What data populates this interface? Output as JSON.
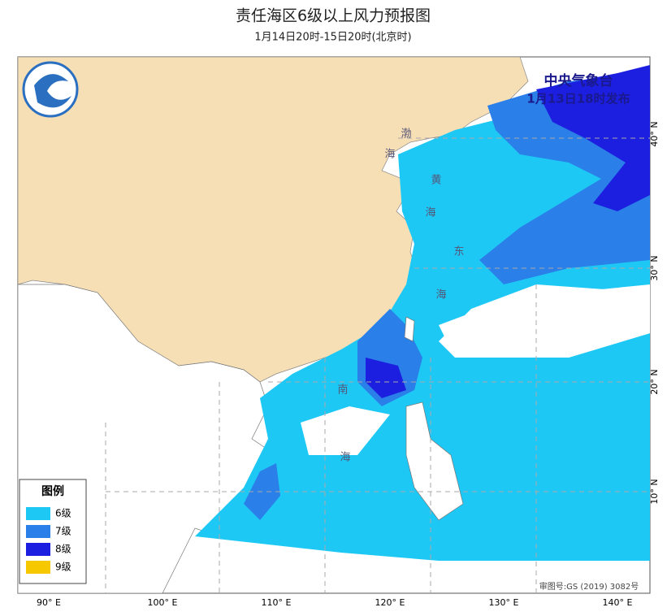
{
  "header": {
    "title": "责任海区6级以上风力预报图",
    "subtitle": "1月14日20时-15日20时(北京时)"
  },
  "issuer": {
    "name": "中央气象台",
    "time": "1月13日18时发布"
  },
  "legend": {
    "title": "图例",
    "items": [
      {
        "label": "6级",
        "color": "#1ec8f5"
      },
      {
        "label": "7级",
        "color": "#2a7fe8"
      },
      {
        "label": "8级",
        "color": "#1c1ee0"
      },
      {
        "label": "9级",
        "color": "#f5c800"
      }
    ]
  },
  "longitude_labels": [
    "90° E",
    "100° E",
    "110° E",
    "120° E",
    "130° E",
    "140° E"
  ],
  "latitude_labels": [
    "10° N",
    "20° N",
    "30° N",
    "40° N"
  ],
  "sea_labels": [
    "渤",
    "海",
    "黄",
    "海",
    "东",
    "海",
    "南",
    "海"
  ],
  "approval": "审图号:GS (2019) 3082号"
}
